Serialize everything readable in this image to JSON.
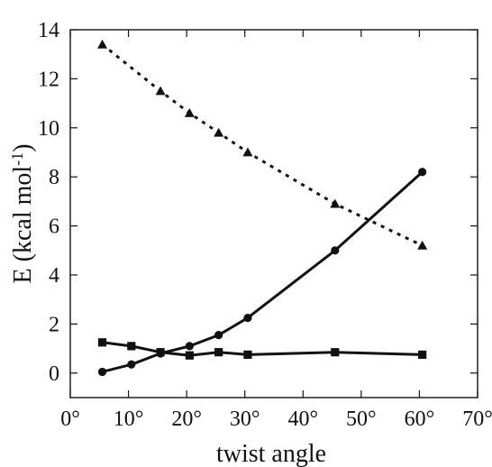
{
  "chart_data": {
    "type": "line",
    "title": "",
    "xlabel": "twist angle",
    "ylabel": "E (kcal mol",
    "ylabel_superscript": "-1",
    "ylabel_suffix": ")",
    "xlim": [
      0,
      70
    ],
    "ylim": [
      -1,
      14
    ],
    "grid": false,
    "legend": "none",
    "x_ticks": [
      {
        "value": 0,
        "label": "0°"
      },
      {
        "value": 10,
        "label": "10°"
      },
      {
        "value": 20,
        "label": "20°"
      },
      {
        "value": 30,
        "label": "30°"
      },
      {
        "value": 40,
        "label": "40°"
      },
      {
        "value": 50,
        "label": "50°"
      },
      {
        "value": 60,
        "label": "60°"
      },
      {
        "value": 70,
        "label": "70°"
      }
    ],
    "y_ticks": [
      {
        "value": 0,
        "label": "0"
      },
      {
        "value": 2,
        "label": "2"
      },
      {
        "value": 4,
        "label": "4"
      },
      {
        "value": 6,
        "label": "6"
      },
      {
        "value": 8,
        "label": "8"
      },
      {
        "value": 10,
        "label": "10"
      },
      {
        "value": 12,
        "label": "12"
      },
      {
        "value": 14,
        "label": "14"
      }
    ],
    "series": [
      {
        "marker": "triangle",
        "line_style": "dotted",
        "color": "#111111",
        "points": [
          {
            "x": 5.5,
            "y": 13.4
          },
          {
            "x": 15.5,
            "y": 11.5
          },
          {
            "x": 20.5,
            "y": 10.6
          },
          {
            "x": 25.5,
            "y": 9.8
          },
          {
            "x": 30.5,
            "y": 9.0
          },
          {
            "x": 45.5,
            "y": 6.9
          },
          {
            "x": 60.5,
            "y": 5.2
          }
        ]
      },
      {
        "marker": "circle",
        "line_style": "solid",
        "color": "#111111",
        "points": [
          {
            "x": 5.5,
            "y": 0.05
          },
          {
            "x": 10.5,
            "y": 0.35
          },
          {
            "x": 15.5,
            "y": 0.8
          },
          {
            "x": 20.5,
            "y": 1.1
          },
          {
            "x": 25.5,
            "y": 1.55
          },
          {
            "x": 30.5,
            "y": 2.25
          },
          {
            "x": 45.5,
            "y": 5.0
          },
          {
            "x": 60.5,
            "y": 8.2
          }
        ]
      },
      {
        "marker": "square",
        "line_style": "solid",
        "color": "#111111",
        "points": [
          {
            "x": 5.5,
            "y": 1.25
          },
          {
            "x": 10.5,
            "y": 1.1
          },
          {
            "x": 15.5,
            "y": 0.85
          },
          {
            "x": 20.5,
            "y": 0.72
          },
          {
            "x": 25.5,
            "y": 0.85
          },
          {
            "x": 30.5,
            "y": 0.75
          },
          {
            "x": 45.5,
            "y": 0.85
          },
          {
            "x": 60.5,
            "y": 0.75
          }
        ]
      }
    ]
  }
}
